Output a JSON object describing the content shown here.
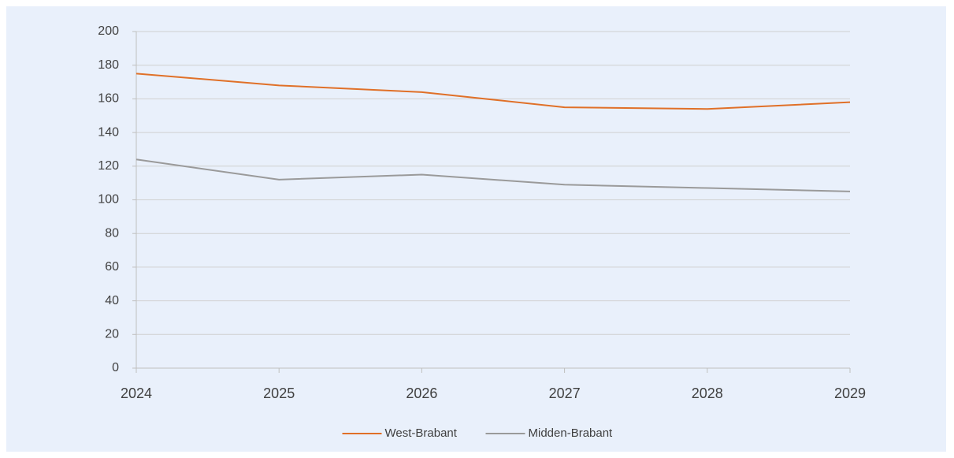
{
  "chart_data": {
    "type": "line",
    "x": [
      2024,
      2025,
      2026,
      2027,
      2028,
      2029
    ],
    "xlim": [
      2024,
      2029
    ],
    "xticks": [
      2024,
      2025,
      2026,
      2027,
      2028,
      2029
    ],
    "ylim": [
      0,
      200
    ],
    "yticks": [
      0,
      20,
      40,
      60,
      80,
      100,
      120,
      140,
      160,
      180,
      200
    ],
    "grid": true,
    "legend": "bottom",
    "series": [
      {
        "name": "West-Brabant",
        "color": "#e07028",
        "values": [
          175,
          168,
          164,
          155,
          154,
          158
        ]
      },
      {
        "name": "Midden-Brabant",
        "color": "#9a9a9a",
        "values": [
          124,
          112,
          115,
          109,
          107,
          105
        ]
      }
    ]
  }
}
